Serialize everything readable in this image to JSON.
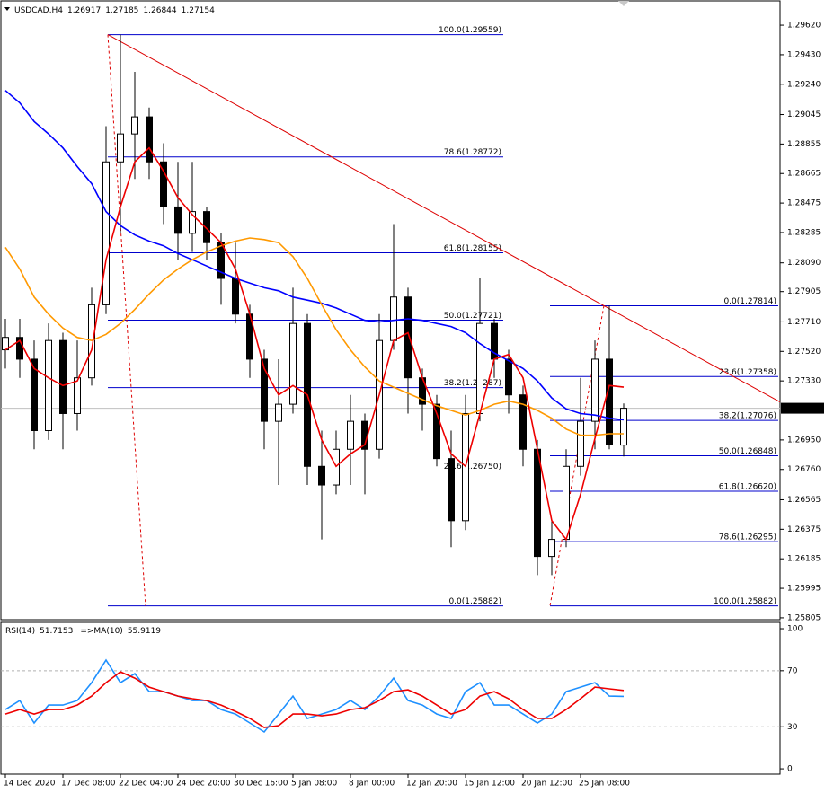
{
  "chart_data": [
    {
      "type": "candlestick",
      "symbol": "USDCAD,H4",
      "categories": [
        "14 Dec 2020",
        null,
        null,
        null,
        "17 Dec 08:00",
        null,
        null,
        null,
        "22 Dec 04:00",
        null,
        null,
        null,
        "24 Dec 20:00",
        null,
        null,
        null,
        "30 Dec 16:00",
        null,
        null,
        null,
        "5 Jan 08:00",
        null,
        null,
        null,
        "8 Jan 00:00",
        null,
        null,
        null,
        "12 Jan 20:00",
        null,
        null,
        null,
        "15 Jan 12:00",
        null,
        null,
        null,
        "20 Jan 12:00",
        null,
        null,
        null,
        "25 Jan 08:00",
        null,
        null,
        null
      ],
      "ohlc": [
        [
          1.2753,
          1.2773,
          1.2741,
          1.2761
        ],
        [
          1.2761,
          1.2773,
          1.2735,
          1.2747
        ],
        [
          1.2747,
          1.2759,
          1.2689,
          1.2701
        ],
        [
          1.2701,
          1.277,
          1.2695,
          1.2759
        ],
        [
          1.2759,
          1.2764,
          1.2689,
          1.2712
        ],
        [
          1.2712,
          1.2759,
          1.2701,
          1.2735
        ],
        [
          1.2735,
          1.2793,
          1.273,
          1.2782
        ],
        [
          1.2782,
          1.2897,
          1.2776,
          1.2874
        ],
        [
          1.2874,
          1.29559,
          1.2828,
          1.2892
        ],
        [
          1.2892,
          1.2932,
          1.2863,
          1.2903
        ],
        [
          1.2903,
          1.2909,
          1.2863,
          1.2874
        ],
        [
          1.2874,
          1.2886,
          1.2834,
          1.2845
        ],
        [
          1.2845,
          1.2874,
          1.2811,
          1.2828
        ],
        [
          1.2828,
          1.2874,
          1.2816,
          1.2842
        ],
        [
          1.2842,
          1.2845,
          1.2811,
          1.2822
        ],
        [
          1.2822,
          1.2828,
          1.2782,
          1.2799
        ],
        [
          1.2799,
          1.2822,
          1.277,
          1.2776
        ],
        [
          1.2776,
          1.2782,
          1.2735,
          1.2747
        ],
        [
          1.2747,
          1.2753,
          1.2689,
          1.2707
        ],
        [
          1.2707,
          1.2747,
          1.2666,
          1.2718
        ],
        [
          1.2718,
          1.2793,
          1.2712,
          1.277
        ],
        [
          1.277,
          1.2776,
          1.2666,
          1.2678
        ],
        [
          1.2678,
          1.2701,
          1.2631,
          1.2666
        ],
        [
          1.2666,
          1.2701,
          1.266,
          1.2689
        ],
        [
          1.2689,
          1.2724,
          1.2666,
          1.2707
        ],
        [
          1.2707,
          1.2712,
          1.266,
          1.2689
        ],
        [
          1.2689,
          1.2776,
          1.2683,
          1.2759
        ],
        [
          1.2759,
          1.2834,
          1.2753,
          1.2787
        ],
        [
          1.2787,
          1.2793,
          1.2712,
          1.2735
        ],
        [
          1.2735,
          1.2741,
          1.2701,
          1.2718
        ],
        [
          1.2718,
          1.2724,
          1.2678,
          1.2683
        ],
        [
          1.2683,
          1.2701,
          1.2626,
          1.2643
        ],
        [
          1.2643,
          1.2724,
          1.2637,
          1.2712
        ],
        [
          1.2712,
          1.2799,
          1.2707,
          1.277
        ],
        [
          1.277,
          1.2773,
          1.2735,
          1.2747
        ],
        [
          1.2747,
          1.2753,
          1.2712,
          1.2724
        ],
        [
          1.2724,
          1.273,
          1.2678,
          1.2689
        ],
        [
          1.2689,
          1.2695,
          1.2608,
          1.262
        ],
        [
          1.262,
          1.2643,
          1.2608,
          1.2631
        ],
        [
          1.2631,
          1.2689,
          1.2626,
          1.2678
        ],
        [
          1.2678,
          1.2735,
          1.2672,
          1.2707
        ],
        [
          1.2707,
          1.2759,
          1.2689,
          1.2747
        ],
        [
          1.2747,
          1.27814,
          1.2689,
          1.2692
        ],
        [
          1.26917,
          1.27185,
          1.26844,
          1.27154
        ]
      ],
      "series": [
        {
          "color": "#0000ff",
          "values": [
            1.292,
            1.2912,
            1.29,
            1.2892,
            1.2883,
            1.2871,
            1.286,
            1.2842,
            1.2833,
            1.2827,
            1.2823,
            1.282,
            1.2815,
            1.2811,
            1.2807,
            1.2803,
            1.2799,
            1.2796,
            1.2793,
            1.2791,
            1.2787,
            1.2785,
            1.2783,
            1.278,
            1.2776,
            1.2772,
            1.2771,
            1.2772,
            1.2773,
            1.2772,
            1.277,
            1.2768,
            1.2764,
            1.2757,
            1.2751,
            1.2746,
            1.2741,
            1.2733,
            1.2722,
            1.2715,
            1.2712,
            1.2711,
            1.2709,
            1.2708
          ]
        },
        {
          "color": "#ff9900",
          "values": [
            1.2819,
            1.2805,
            1.2787,
            1.2776,
            1.2767,
            1.2761,
            1.2759,
            1.2763,
            1.277,
            1.2779,
            1.2789,
            1.2798,
            1.2805,
            1.2811,
            1.2816,
            1.282,
            1.2823,
            1.2825,
            1.2824,
            1.2822,
            1.2813,
            1.2799,
            1.2782,
            1.2766,
            1.2753,
            1.2742,
            1.2733,
            1.2729,
            1.2725,
            1.2721,
            1.2717,
            1.2714,
            1.2711,
            1.2714,
            1.2718,
            1.272,
            1.2718,
            1.2714,
            1.2709,
            1.2702,
            1.2698,
            1.2698,
            1.2699,
            1.2699
          ]
        },
        {
          "color": "#ee0000",
          "values": [
            1.2753,
            1.2759,
            1.2741,
            1.2735,
            1.273,
            1.2733,
            1.2753,
            1.2811,
            1.2845,
            1.2874,
            1.2883,
            1.2868,
            1.2851,
            1.284,
            1.2831,
            1.2822,
            1.2805,
            1.2776,
            1.2741,
            1.2724,
            1.273,
            1.2724,
            1.2695,
            1.2678,
            1.2686,
            1.2692,
            1.2724,
            1.2759,
            1.2764,
            1.2735,
            1.2712,
            1.2686,
            1.2678,
            1.2712,
            1.2747,
            1.275,
            1.2735,
            1.2689,
            1.2643,
            1.2631,
            1.266,
            1.2696,
            1.273,
            1.2729
          ]
        }
      ],
      "ylim": [
        1.25793,
        1.29736
      ],
      "yticks": [
        {
          "value": 1.2962,
          "label": "1.29620"
        },
        {
          "value": 1.2943,
          "label": "1.29430"
        },
        {
          "value": 1.2924,
          "label": "1.29240"
        },
        1.29045,
        1.28855,
        1.28665,
        1.28475,
        1.28285,
        {
          "value": 1.2809,
          "label": "1.28090"
        },
        1.27905,
        {
          "value": 1.2771,
          "label": "1.27710"
        },
        {
          "value": 1.2752,
          "label": "1.27520"
        },
        {
          "value": 1.2733,
          "label": "1.27330"
        },
        {
          "value": 1.2695,
          "label": "1.26950"
        },
        {
          "value": 1.2676,
          "label": "1.26760"
        },
        1.26565,
        1.26375,
        1.26185,
        1.25995,
        1.25805
      ],
      "fibonacci": [
        {
          "color": "#0000cc",
          "levels": [
            {
              "value": 1.29559,
              "label": "100.0(1.29559)"
            },
            {
              "value": 1.28772,
              "label": "78.6(1.28772)"
            },
            {
              "value": 1.28155,
              "label": "61.8(1.28155)"
            },
            {
              "value": 1.27721,
              "label": "50.0(1.27721)"
            },
            {
              "value": 1.27287,
              "label": "38.2(1.27287)"
            },
            {
              "value": 1.2675,
              "label": "23.6(1.26750)"
            },
            {
              "value": 1.25882,
              "label": "0.0(1.25882)"
            }
          ]
        },
        {
          "color": "#0000cc",
          "levels": [
            {
              "value": 1.27814,
              "label": "0.0(1.27814)"
            },
            {
              "value": 1.27358,
              "label": "23.6(1.27358)"
            },
            {
              "value": 1.27076,
              "label": "38.2(1.27076)"
            },
            {
              "value": 1.26848,
              "label": "50.0(1.26848)"
            },
            {
              "value": 1.2662,
              "label": "61.8(1.26620)"
            },
            {
              "value": 1.26295,
              "label": "78.6(1.26295)"
            },
            {
              "value": 1.25882,
              "label": "100.0(1.25882)"
            }
          ]
        }
      ],
      "trendline_color": "#dd0000",
      "up_color": "#ffffff",
      "down_color": "#000000"
    },
    {
      "type": "line",
      "title": "RSI(14)",
      "ma_title": "=>MA(10)",
      "series": [
        {
          "color": "#1e90ff",
          "values": [
            42.3,
            48.7,
            32.7,
            45.5,
            45.5,
            48.7,
            61.5,
            77.6,
            61.5,
            67.9,
            55.1,
            55.1,
            51.9,
            48.7,
            48.7,
            42.3,
            39.1,
            32.7,
            26.3,
            39.1,
            51.9,
            35.9,
            39.1,
            42.3,
            48.7,
            42.3,
            51.9,
            64.7,
            48.7,
            45.5,
            39.1,
            35.9,
            55.1,
            61.5,
            45.5,
            45.5,
            39.1,
            32.7,
            39.1,
            55.1,
            58.3,
            61.5,
            51.9,
            51.7153
          ]
        },
        {
          "color": "#ee0000",
          "values": [
            39.1,
            42.3,
            39.1,
            42.3,
            42.3,
            45.5,
            51.9,
            61.5,
            69.2,
            64.7,
            58.3,
            55.1,
            51.9,
            50.0,
            48.7,
            45.5,
            41.0,
            35.9,
            29.5,
            30.8,
            39.1,
            39.1,
            37.8,
            39.1,
            42.3,
            43.6,
            48.7,
            55.1,
            56.4,
            51.9,
            45.5,
            39.1,
            42.3,
            51.9,
            55.1,
            50.0,
            42.3,
            35.9,
            35.9,
            42.3,
            50.0,
            58.3,
            57.1,
            55.9119
          ]
        }
      ],
      "ylim": [
        -3.8,
        104.5
      ],
      "yticks": [
        0,
        30,
        70,
        100
      ],
      "levels": [
        30,
        70
      ]
    }
  ]
}
